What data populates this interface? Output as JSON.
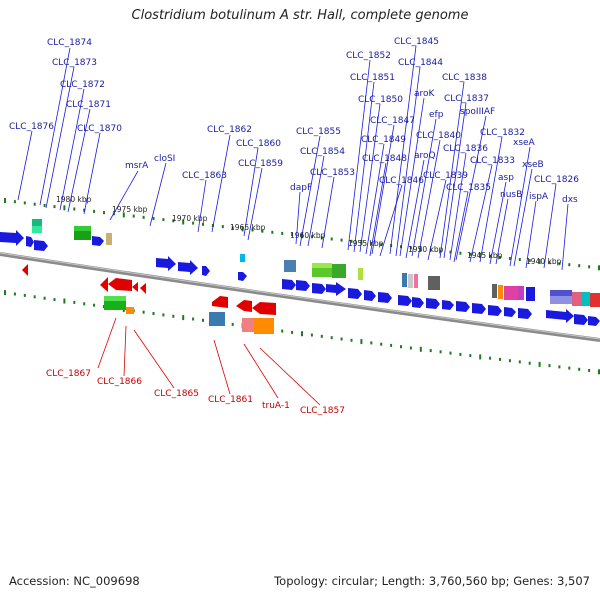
{
  "title": "Clostridium botulinum A str. Hall, complete genome",
  "footer": {
    "accession": "Accession: NC_009698",
    "stats": "Topology: circular; Length: 3,760,560 bp; Genes: 3,507"
  },
  "colors": {
    "forward": "#1a1adf",
    "reverse": "#e00000",
    "backbone": "#8a8a8a",
    "ticks": "#1e7a1e",
    "fwd_label": "#1a1aa0",
    "rev_label": "#c40000"
  },
  "ticks": [
    "1980 kbp",
    "1975 kbp",
    "1970 kbp",
    "1965 kbp",
    "1960 kbp",
    "1955 kbp",
    "1950 kbp",
    "1945 kbp",
    "1940 kbp"
  ],
  "forward_labels": [
    "CLC_1874",
    "CLC_1873",
    "CLC_1872",
    "CLC_1871",
    "CLC_1876",
    "CLC_1870",
    "msrA",
    "cloSI",
    "CLC_1862",
    "CLC_1860",
    "CLC_1863",
    "CLC_1859",
    "CLC_1855",
    "CLC_1854",
    "dapF",
    "CLC_1853",
    "CLC_1852",
    "CLC_1845",
    "CLC_1844",
    "CLC_1851",
    "CLC_1838",
    "aroK",
    "CLC_1850",
    "CLC_1837",
    "efp",
    "CLC_1847",
    "spoIIIAF",
    "CLC_1849",
    "CLC_1840",
    "aroQ",
    "CLC_1832",
    "CLC_1836",
    "CLC_1848",
    "xseA",
    "CLC_1833",
    "CLC_1839",
    "CLC_1846",
    "asp",
    "xseB",
    "CLC_1835",
    "nusB",
    "CLC_1826",
    "ispA",
    "dxs"
  ],
  "reverse_labels": [
    "CLC_1867",
    "CLC_1866",
    "CLC_1865",
    "CLC_1861",
    "truA-1",
    "CLC_1857"
  ]
}
